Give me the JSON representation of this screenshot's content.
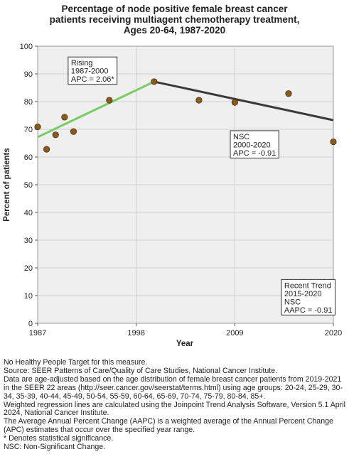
{
  "chart_data": {
    "type": "scatter",
    "title": [
      "Percentage of node positive female breast cancer",
      "patients receiving multiagent chemotherapy treatment,",
      "Ages 20-64,  1987-2020"
    ],
    "xlabel": "Year",
    "ylabel": "Percent of patients",
    "xlim": [
      1987,
      2020
    ],
    "ylim": [
      0,
      100
    ],
    "x_ticks": [
      1987,
      1998,
      2009,
      2020
    ],
    "y_ticks": [
      0,
      10,
      20,
      30,
      40,
      50,
      60,
      70,
      80,
      90,
      100
    ],
    "grid": true,
    "colors": {
      "points": "#8B5A1E",
      "rising": "#77CC66",
      "nsc": "#3A3A3A",
      "plot_bg": "#EFEFEF"
    },
    "observed": {
      "x": [
        1987,
        1988,
        1989,
        1990,
        1991,
        1995,
        2000,
        2005,
        2009,
        2015,
        2020
      ],
      "y": [
        70.9,
        62.8,
        68.0,
        74.4,
        69.2,
        80.5,
        87.2,
        80.5,
        79.7,
        82.9,
        65.5
      ]
    },
    "trend_lines": [
      {
        "x": [
          1987,
          2000
        ],
        "y": [
          67.2,
          87.2
        ],
        "color": "#77CC66"
      },
      {
        "x": [
          2000,
          2020
        ],
        "y": [
          87.2,
          73.3
        ],
        "color": "#3A3A3A"
      }
    ],
    "annotations": [
      {
        "lines": [
          "Rising",
          "1987-2000",
          "APC =  2.06*"
        ],
        "x": 1990.4,
        "y": 96.1
      },
      {
        "lines": [
          "NSC",
          "2000-2020",
          "APC = -0.91"
        ],
        "x": 2008.5,
        "y": 69.5
      },
      {
        "lines": [
          "Recent Trend",
          "2015-2020",
          "NSC",
          "AAPC = -0.91"
        ],
        "x": 2014.2,
        "y": 15.8
      }
    ]
  },
  "notes": [
    "No Healthy People Target for this measure.",
    "Source: SEER Patterns of Care/Quality of Care Studies, National Cancer Institute.",
    "Data are age-adjusted based on the age distribution of female breast cancer patients from 2019-2021 in the SEER 22 areas (http://seer.cancer.gov/seerstat/terms.html) using age groups: 20-24, 25-29, 30-34, 35-39, 40-44, 45-49, 50-54, 55-59, 60-64, 65-69, 70-74, 75-79, 80-84, 85+.",
    "Weighted regression lines are calculated using the Joinpoint Trend Analysis Software, Version 5.1 April 2024, National Cancer Institute.",
    "The Average Annual Percent Change (AAPC) is a weighted average of the Annual Percent Change (APC) estimates that occur over the specified year range.",
    "* Denotes statistical significance.",
    "NSC: Non-Significant Change."
  ]
}
